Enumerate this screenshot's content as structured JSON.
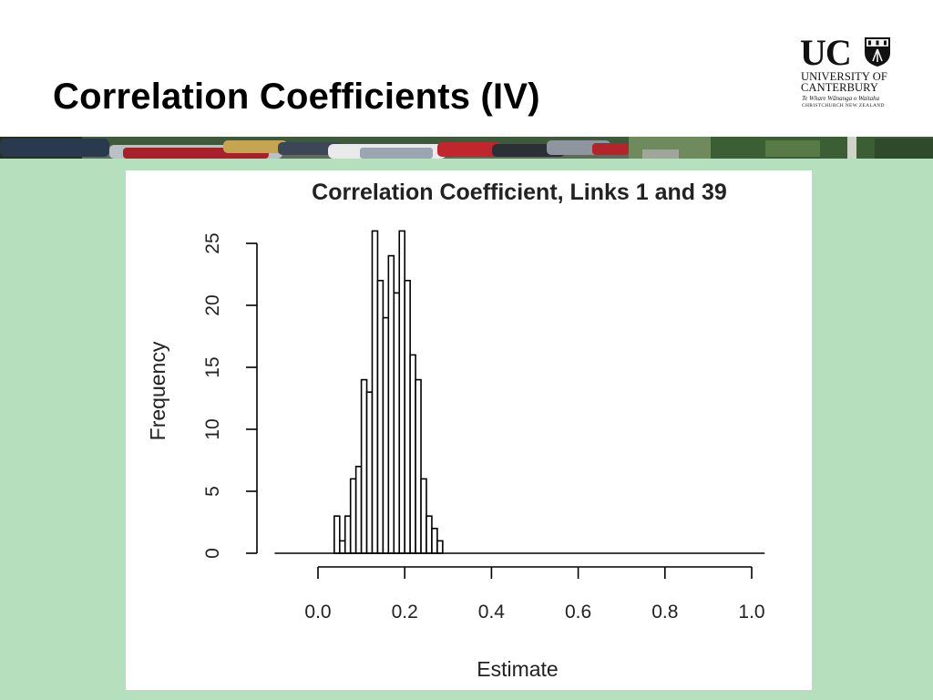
{
  "slide": {
    "title": "Correlation Coefficients (IV)"
  },
  "logo": {
    "letters": "UC",
    "line1": "UNIVERSITY OF",
    "line2": "CANTERBURY",
    "line3": "Te Whare Wānanga o Waitaha",
    "line4": "CHRISTCHURCH NEW ZEALAND"
  },
  "colors": {
    "content_background": "#b5dfbd",
    "panel_background": "#ffffff",
    "bar_stroke": "#000000"
  },
  "chart_data": {
    "type": "bar",
    "title": "Correlation Coefficient, Links 1 and 39",
    "xlabel": "Estimate",
    "ylabel": "Frequency",
    "xlim": [
      -0.1,
      1.0
    ],
    "ylim": [
      0,
      26
    ],
    "xticks": [
      0.0,
      0.2,
      0.4,
      0.6,
      0.8,
      1.0
    ],
    "xtick_labels": [
      "0.0",
      "0.2",
      "0.4",
      "0.6",
      "0.8",
      "1.0"
    ],
    "yticks": [
      0,
      5,
      10,
      15,
      20,
      25
    ],
    "ytick_labels": [
      "0",
      "5",
      "10",
      "15",
      "20",
      "25"
    ],
    "bin_width": 0.0125,
    "bin_starts": [
      0.0375,
      0.05,
      0.0625,
      0.075,
      0.0875,
      0.1,
      0.1125,
      0.125,
      0.1375,
      0.15,
      0.1625,
      0.175,
      0.1875,
      0.2,
      0.2125,
      0.225,
      0.2375,
      0.25,
      0.2625,
      0.275
    ],
    "values": [
      3,
      1,
      3,
      6,
      7,
      14,
      13,
      26,
      22,
      19,
      24,
      21,
      26,
      22,
      16,
      14,
      6,
      3,
      2,
      1
    ],
    "baseline_range": [
      -0.1,
      1.03
    ],
    "grid": false,
    "legend": "none"
  }
}
